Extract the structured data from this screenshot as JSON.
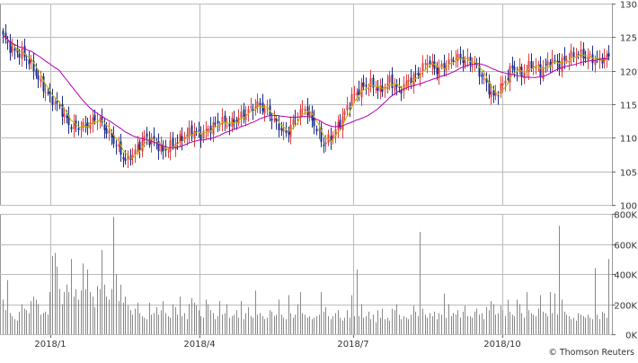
{
  "credit": "© Thomson Reuters",
  "chart_data": [
    {
      "panel": "price",
      "type": "candlestick",
      "y_axis_position": "right",
      "ylim": [
        100,
        130
      ],
      "yticks": [
        "100",
        "105",
        "110",
        "115",
        "120",
        "125",
        "130"
      ],
      "grid": true,
      "x_labels": [
        "2018/1",
        "2018/4",
        "2018/7",
        "2018/10"
      ],
      "colors": {
        "up": "#e04040",
        "down": "#1a2e8a",
        "short_ma": "#c8b400",
        "long_ma": "#b000b0"
      },
      "close_anchors": [
        [
          0,
          125
        ],
        [
          4,
          123
        ],
        [
          8,
          122.5
        ],
        [
          12,
          121
        ],
        [
          16,
          118
        ],
        [
          20,
          116
        ],
        [
          24,
          114.5
        ],
        [
          28,
          112
        ],
        [
          32,
          111.5
        ],
        [
          36,
          112
        ],
        [
          40,
          113
        ],
        [
          44,
          111
        ],
        [
          48,
          109
        ],
        [
          52,
          106.5
        ],
        [
          56,
          108
        ],
        [
          60,
          110
        ],
        [
          64,
          109.5
        ],
        [
          68,
          108
        ],
        [
          72,
          109
        ],
        [
          76,
          110
        ],
        [
          80,
          111
        ],
        [
          84,
          110.5
        ],
        [
          88,
          111.5
        ],
        [
          92,
          112.5
        ],
        [
          96,
          112
        ],
        [
          100,
          113
        ],
        [
          104,
          114
        ],
        [
          108,
          115
        ],
        [
          112,
          114
        ],
        [
          116,
          112
        ],
        [
          120,
          110.5
        ],
        [
          124,
          113
        ],
        [
          128,
          114.5
        ],
        [
          132,
          112
        ],
        [
          136,
          109
        ],
        [
          140,
          110.5
        ],
        [
          144,
          113
        ],
        [
          148,
          116
        ],
        [
          152,
          117.5
        ],
        [
          156,
          118
        ],
        [
          160,
          117
        ],
        [
          164,
          118.5
        ],
        [
          168,
          117
        ],
        [
          172,
          118.5
        ],
        [
          176,
          119.5
        ],
        [
          180,
          121.5
        ],
        [
          184,
          120
        ],
        [
          188,
          121
        ],
        [
          192,
          122
        ],
        [
          196,
          121.5
        ],
        [
          200,
          121
        ],
        [
          204,
          118.5
        ],
        [
          208,
          116
        ],
        [
          212,
          118
        ],
        [
          216,
          120.5
        ],
        [
          220,
          119.5
        ],
        [
          224,
          121
        ],
        [
          228,
          120
        ],
        [
          232,
          121.5
        ],
        [
          236,
          121
        ],
        [
          240,
          122
        ],
        [
          244,
          122.5
        ],
        [
          248,
          122
        ],
        [
          252,
          121.5
        ],
        [
          256,
          122
        ],
        [
          260,
          122.5
        ]
      ]
    },
    {
      "panel": "volume",
      "type": "bar",
      "y_axis_position": "right",
      "ylim": [
        0,
        800000
      ],
      "yticks": [
        "0K",
        "200K",
        "400K",
        "600K",
        "800K"
      ],
      "grid": true,
      "color": "#888888",
      "values": [
        230000,
        160000,
        360000,
        140000,
        120000,
        100000,
        90000,
        150000,
        200000,
        170000,
        160000,
        140000,
        220000,
        250000,
        230000,
        200000,
        130000,
        140000,
        150000,
        130000,
        280000,
        520000,
        540000,
        450000,
        300000,
        200000,
        280000,
        330000,
        280000,
        500000,
        250000,
        300000,
        230000,
        290000,
        470000,
        300000,
        430000,
        280000,
        250000,
        180000,
        320000,
        300000,
        560000,
        330000,
        250000,
        230000,
        300000,
        780000,
        400000,
        220000,
        330000,
        210000,
        250000,
        190000,
        160000,
        130000,
        170000,
        210000,
        140000,
        120000,
        110000,
        100000,
        210000,
        130000,
        140000,
        180000,
        130000,
        160000,
        220000,
        140000,
        120000,
        110000,
        200000,
        180000,
        130000,
        250000,
        120000,
        140000,
        100000,
        200000,
        240000,
        210000,
        190000,
        160000,
        120000,
        110000,
        230000,
        200000,
        160000,
        140000,
        100000,
        120000,
        220000,
        130000,
        140000,
        200000,
        110000,
        120000,
        130000,
        160000,
        110000,
        220000,
        100000,
        140000,
        180000,
        120000,
        110000,
        290000,
        130000,
        140000,
        120000,
        100000,
        110000,
        160000,
        150000,
        120000,
        130000,
        230000,
        130000,
        110000,
        100000,
        260000,
        140000,
        110000,
        130000,
        200000,
        280000,
        140000,
        130000,
        110000,
        120000,
        100000,
        110000,
        120000,
        130000,
        280000,
        150000,
        180000,
        120000,
        100000,
        120000,
        140000,
        160000,
        110000,
        90000,
        110000,
        160000,
        110000,
        260000,
        120000,
        430000,
        120000,
        200000,
        110000,
        120000,
        150000,
        100000,
        130000,
        80000,
        160000,
        110000,
        170000,
        100000,
        110000,
        90000,
        170000,
        160000,
        200000,
        130000,
        100000,
        120000,
        110000,
        100000,
        130000,
        190000,
        150000,
        120000,
        680000,
        170000,
        130000,
        110000,
        140000,
        120000,
        150000,
        100000,
        140000,
        130000,
        270000,
        110000,
        200000,
        120000,
        140000,
        130000,
        160000,
        110000,
        150000,
        190000,
        120000,
        120000,
        110000,
        150000,
        170000,
        130000,
        140000,
        100000,
        180000,
        160000,
        220000,
        200000,
        130000,
        140000,
        190000,
        160000,
        120000,
        230000,
        150000,
        130000,
        120000,
        230000,
        200000,
        140000,
        110000,
        280000,
        160000,
        140000,
        130000,
        120000,
        170000,
        260000,
        150000,
        140000,
        120000,
        280000,
        140000,
        270000,
        130000,
        720000,
        230000,
        150000,
        130000,
        120000,
        100000,
        110000,
        90000,
        140000,
        130000,
        120000,
        110000,
        130000,
        110000,
        100000,
        440000,
        130000,
        100000,
        150000,
        140000,
        110000,
        500000
      ]
    }
  ]
}
